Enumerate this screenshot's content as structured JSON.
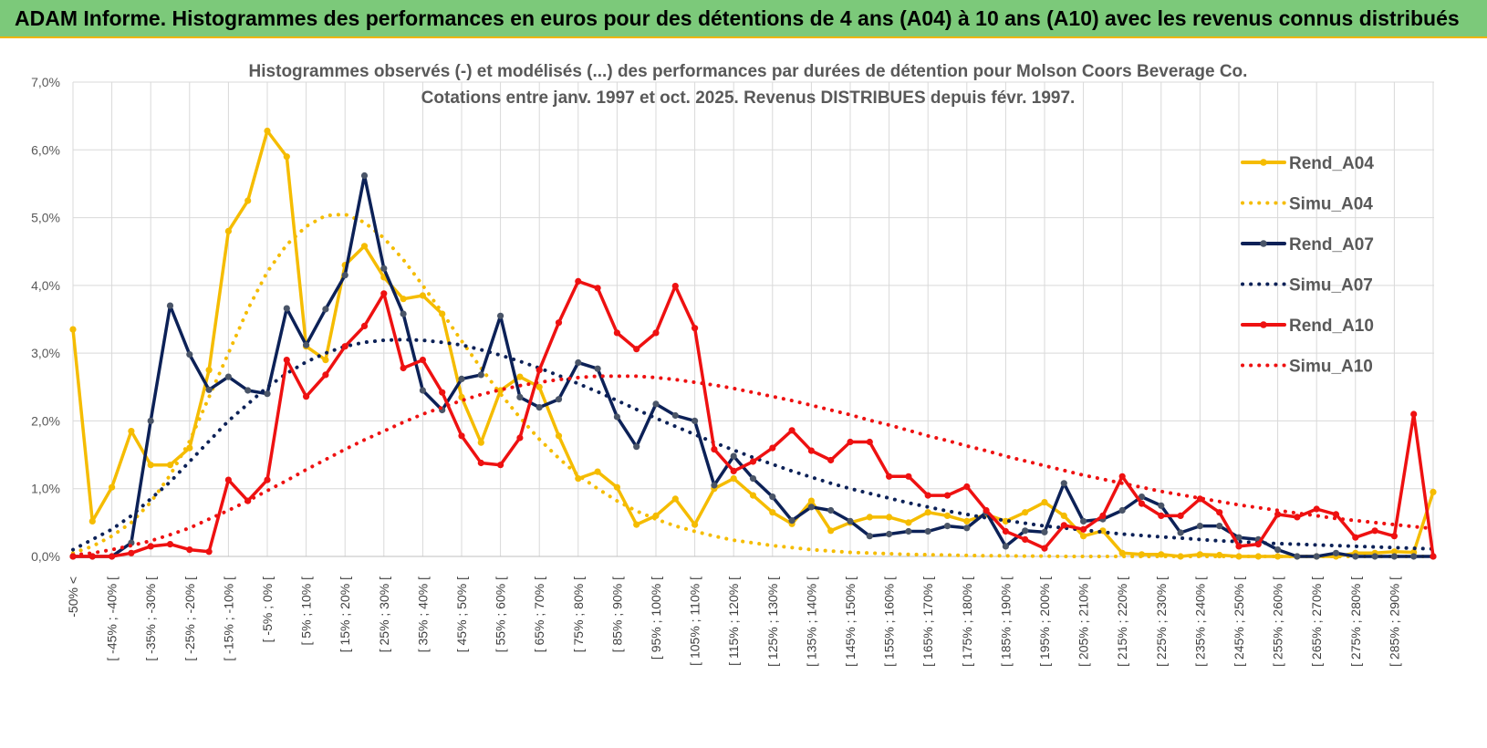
{
  "header": {
    "title": "ADAM Informe. Histogrammes des performances en euros pour des détentions de 4 ans (A04) à 10 ans (A10) avec les revenus connus distribués",
    "background": "#7cc97a",
    "accent": "#f0b400"
  },
  "chart_data": {
    "type": "line",
    "title_line1": "Histogrammes observés (-) et modélisés (...) des performances par durées de détention pour Molson Coors Beverage Co.",
    "title_line2": "Cotations entre janv. 1997 et oct. 2025. Revenus DISTRIBUES depuis févr. 1997.",
    "ylim": [
      0,
      7
    ],
    "yticks": [
      "0,0%",
      "1,0%",
      "2,0%",
      "3,0%",
      "4,0%",
      "5,0%",
      "6,0%",
      "7,0%"
    ],
    "xlabels": [
      "-50% <",
      "[ -45% ; -40% [",
      "[ -35% ; -30% [",
      "[ -25% ; -20% [",
      "[ -15% ; -10% [",
      "[ -5% ; 0% [",
      "[ 5% ; 10% [",
      "[ 15% ; 20% [",
      "[ 25% ; 30% [",
      "[ 35% ; 40% [",
      "[ 45% ; 50% [",
      "[ 55% ; 60% [",
      "[ 65% ; 70% [",
      "[ 75% ; 80% [",
      "[ 85% ; 90% [",
      "[ 95% ; 100% [",
      "[ 105% ; 110% [",
      "[ 115% ; 120% [",
      "[ 125% ; 130% [",
      "[ 135% ; 140% [",
      "[ 145% ; 150% [",
      "[ 155% ; 160% [",
      "[ 165% ; 170% [",
      "[ 175% ; 180% [",
      "[ 185% ; 190% [",
      "[ 195% ; 200% [",
      "[ 205% ; 210% [",
      "[ 215% ; 220% [",
      "[ 225% ; 230% [",
      "[ 235% ; 240% [",
      "[ 245% ; 250% [",
      "[ 255% ; 260% [",
      "[ 265% ; 270% [",
      "[ 275% ; 280% [",
      "[ 285% ; 290% ["
    ],
    "n_points": 71,
    "series": [
      {
        "name": "Rend_A04",
        "color": "#f5bc00",
        "style": "solid",
        "markers": true,
        "values": [
          3.35,
          0.52,
          1.02,
          1.85,
          1.35,
          1.35,
          1.6,
          2.75,
          4.8,
          5.25,
          6.28,
          5.9,
          3.1,
          2.9,
          4.3,
          4.58,
          4.12,
          3.8,
          3.85,
          3.58,
          2.35,
          1.68,
          2.45,
          2.65,
          2.5,
          1.78,
          1.15,
          1.25,
          1.02,
          0.47,
          0.6,
          0.85,
          0.47,
          1.0,
          1.15,
          0.9,
          0.65,
          0.48,
          0.82,
          0.38,
          0.5,
          0.58,
          0.58,
          0.5,
          0.65,
          0.6,
          0.52,
          0.62,
          0.52,
          0.65,
          0.8,
          0.6,
          0.3,
          0.38,
          0.05,
          0.03,
          0.03,
          0.0,
          0.03,
          0.02,
          0.0,
          0.0,
          0.0,
          0.0,
          0.0,
          0.0,
          0.05,
          0.05,
          0.07,
          0.06,
          0.95
        ]
      },
      {
        "name": "Simu_A04",
        "color": "#f5bc00",
        "style": "dotted",
        "markers": false,
        "values": [
          0.05,
          0.15,
          0.3,
          0.5,
          0.8,
          1.2,
          1.7,
          2.35,
          3.0,
          3.65,
          4.2,
          4.6,
          4.87,
          5.03,
          5.05,
          4.93,
          4.7,
          4.38,
          4.0,
          3.6,
          3.18,
          2.78,
          2.4,
          2.05,
          1.73,
          1.45,
          1.2,
          1.0,
          0.82,
          0.67,
          0.55,
          0.45,
          0.37,
          0.3,
          0.24,
          0.2,
          0.16,
          0.13,
          0.1,
          0.08,
          0.06,
          0.05,
          0.04,
          0.03,
          0.025,
          0.02,
          0.015,
          0.01,
          0.01,
          0.005,
          0.005,
          0.0,
          0.0,
          0.0,
          0.0,
          0.0,
          0.0,
          0.0,
          0.0,
          0.0,
          0.0,
          0.0,
          0.0,
          0.0,
          0.0,
          0.0,
          0.0,
          0.0,
          0.0,
          0.0,
          0.0
        ]
      },
      {
        "name": "Rend_A07",
        "color": "#0c2157",
        "style": "solid",
        "markers": true,
        "values": [
          0.0,
          0.0,
          0.0,
          0.2,
          2.0,
          3.7,
          2.98,
          2.46,
          2.65,
          2.45,
          2.4,
          3.66,
          3.12,
          3.65,
          4.15,
          5.62,
          4.25,
          3.58,
          2.45,
          2.16,
          2.62,
          2.68,
          3.55,
          2.35,
          2.2,
          2.32,
          2.86,
          2.77,
          2.06,
          1.62,
          2.25,
          2.08,
          2.0,
          1.05,
          1.48,
          1.15,
          0.88,
          0.53,
          0.73,
          0.68,
          0.52,
          0.3,
          0.33,
          0.37,
          0.37,
          0.45,
          0.42,
          0.65,
          0.15,
          0.38,
          0.36,
          1.08,
          0.52,
          0.55,
          0.68,
          0.88,
          0.75,
          0.35,
          0.45,
          0.45,
          0.28,
          0.25,
          0.1,
          0.0,
          0.0,
          0.05,
          0.0,
          0.0,
          0.0,
          0.0,
          0.0
        ]
      },
      {
        "name": "Simu_A07",
        "color": "#0c2157",
        "style": "dotted",
        "markers": false,
        "values": [
          0.1,
          0.25,
          0.4,
          0.6,
          0.85,
          1.1,
          1.4,
          1.7,
          2.0,
          2.25,
          2.5,
          2.7,
          2.87,
          3.0,
          3.1,
          3.16,
          3.19,
          3.2,
          3.19,
          3.16,
          3.12,
          3.05,
          2.97,
          2.88,
          2.78,
          2.67,
          2.55,
          2.43,
          2.3,
          2.17,
          2.04,
          1.92,
          1.8,
          1.68,
          1.57,
          1.46,
          1.36,
          1.26,
          1.17,
          1.08,
          1.0,
          0.93,
          0.86,
          0.79,
          0.73,
          0.67,
          0.62,
          0.57,
          0.53,
          0.49,
          0.45,
          0.42,
          0.39,
          0.36,
          0.33,
          0.31,
          0.29,
          0.27,
          0.25,
          0.23,
          0.22,
          0.2,
          0.19,
          0.18,
          0.17,
          0.16,
          0.15,
          0.14,
          0.13,
          0.12,
          0.11
        ]
      },
      {
        "name": "Rend_A10",
        "color": "#ee1111",
        "style": "solid",
        "markers": true,
        "values": [
          0.0,
          0.0,
          0.0,
          0.05,
          0.15,
          0.18,
          0.1,
          0.07,
          1.13,
          0.82,
          1.13,
          2.9,
          2.36,
          2.68,
          3.1,
          3.4,
          3.88,
          2.78,
          2.9,
          2.42,
          1.78,
          1.38,
          1.35,
          1.75,
          2.75,
          3.45,
          4.06,
          3.96,
          3.3,
          3.06,
          3.3,
          3.99,
          3.37,
          1.58,
          1.26,
          1.4,
          1.6,
          1.86,
          1.56,
          1.42,
          1.69,
          1.69,
          1.18,
          1.18,
          0.9,
          0.9,
          1.03,
          0.68,
          0.37,
          0.25,
          0.12,
          0.46,
          0.4,
          0.6,
          1.18,
          0.78,
          0.6,
          0.6,
          0.85,
          0.65,
          0.15,
          0.18,
          0.62,
          0.58,
          0.7,
          0.62,
          0.28,
          0.38,
          0.3,
          2.1,
          0.0
        ]
      },
      {
        "name": "Simu_A10",
        "color": "#ee1111",
        "style": "dotted",
        "markers": false,
        "values": [
          0.02,
          0.05,
          0.1,
          0.16,
          0.23,
          0.32,
          0.42,
          0.55,
          0.68,
          0.82,
          0.97,
          1.12,
          1.28,
          1.43,
          1.58,
          1.72,
          1.85,
          1.98,
          2.1,
          2.2,
          2.3,
          2.39,
          2.46,
          2.52,
          2.57,
          2.61,
          2.64,
          2.66,
          2.66,
          2.66,
          2.64,
          2.61,
          2.57,
          2.53,
          2.48,
          2.42,
          2.36,
          2.3,
          2.23,
          2.16,
          2.09,
          2.01,
          1.94,
          1.86,
          1.78,
          1.71,
          1.63,
          1.56,
          1.48,
          1.41,
          1.34,
          1.27,
          1.2,
          1.14,
          1.08,
          1.02,
          0.96,
          0.91,
          0.86,
          0.81,
          0.76,
          0.72,
          0.68,
          0.64,
          0.6,
          0.56,
          0.53,
          0.5,
          0.47,
          0.44,
          0.41
        ]
      }
    ]
  }
}
